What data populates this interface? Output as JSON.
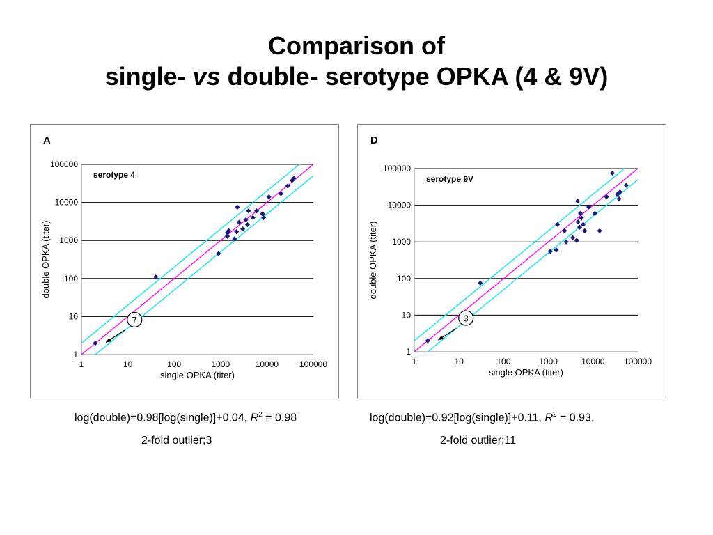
{
  "title": {
    "line1": "Comparison of",
    "line2_pre": "single-",
    "line2_vs": "vs",
    "line2_post": "double- serotype OPKA (4 & 9V)"
  },
  "colors": {
    "points": "#1a1a7a",
    "identity_line": "#ff00ff",
    "fold_lines": "#00e5ee",
    "gridlines": "#000000"
  },
  "captions": {
    "a_eq": "log(double)=0.98[log(single)]+0.04,",
    "a_r2_label": "R",
    "a_r2_sup": "2",
    "a_r2_value": "= 0.98",
    "a_outlier": "2-fold outlier;3",
    "d_eq": "log(double)=0.92[log(single)]+0.11,",
    "d_r2_label": "R",
    "d_r2_sup": "2",
    "d_r2_value": "= 0.93,",
    "d_outlier": "2-fold outlier;11"
  },
  "chart_data": [
    {
      "type": "scatter",
      "panel_letter": "A",
      "series_label": "serotype 4",
      "xlabel": "single OPKA (titer)",
      "ylabel": "double OPKA (titer)",
      "xscale": "log",
      "yscale": "log",
      "xlim": [
        1,
        100000
      ],
      "ylim": [
        1,
        100000
      ],
      "tick_labels": [
        "1",
        "10",
        "100",
        "1000",
        "10000",
        "100000"
      ],
      "grid": "horizontal",
      "reference_lines": [
        "y = x",
        "y = 2x",
        "y = x/2"
      ],
      "annotation": {
        "text": "7",
        "points_to": [
          2,
          2
        ]
      },
      "points": [
        [
          2,
          2
        ],
        [
          40,
          110
        ],
        [
          900,
          450
        ],
        [
          1400,
          1300
        ],
        [
          1400,
          1600
        ],
        [
          1500,
          1800
        ],
        [
          2000,
          1100
        ],
        [
          2200,
          1700
        ],
        [
          2300,
          7500
        ],
        [
          2500,
          3000
        ],
        [
          3000,
          2000
        ],
        [
          3500,
          3500
        ],
        [
          3800,
          2600
        ],
        [
          4000,
          6000
        ],
        [
          5000,
          4000
        ],
        [
          6000,
          6000
        ],
        [
          8000,
          5000
        ],
        [
          8500,
          4000
        ],
        [
          11000,
          14000
        ],
        [
          20000,
          17000
        ],
        [
          28000,
          27000
        ],
        [
          35000,
          38000
        ],
        [
          38000,
          43000
        ]
      ]
    },
    {
      "type": "scatter",
      "panel_letter": "D",
      "series_label": "serotype 9V",
      "xlabel": "single OPKA (titer)",
      "ylabel": "double OPKA (titer)",
      "xscale": "log",
      "yscale": "log",
      "xlim": [
        1,
        100000
      ],
      "ylim": [
        1,
        100000
      ],
      "tick_labels": [
        "1",
        "10",
        "100",
        "1000",
        "10000",
        "100000"
      ],
      "grid": "horizontal",
      "reference_lines": [
        "y = x",
        "y = 2x",
        "y = x/2"
      ],
      "annotation": {
        "text": "3",
        "points_to": [
          2,
          2
        ]
      },
      "points": [
        [
          2,
          2
        ],
        [
          30,
          75
        ],
        [
          1100,
          550
        ],
        [
          1500,
          600
        ],
        [
          1600,
          3000
        ],
        [
          2300,
          2000
        ],
        [
          2500,
          1000
        ],
        [
          3500,
          1300
        ],
        [
          4300,
          1100
        ],
        [
          4500,
          13000
        ],
        [
          4600,
          3500
        ],
        [
          5000,
          2500
        ],
        [
          5200,
          6000
        ],
        [
          5500,
          4500
        ],
        [
          6000,
          3000
        ],
        [
          6500,
          2000
        ],
        [
          8000,
          9000
        ],
        [
          11000,
          6000
        ],
        [
          14000,
          2000
        ],
        [
          20000,
          17000
        ],
        [
          27000,
          75000
        ],
        [
          35000,
          20000
        ],
        [
          38000,
          15000
        ],
        [
          40000,
          23000
        ],
        [
          55000,
          35000
        ]
      ]
    }
  ]
}
